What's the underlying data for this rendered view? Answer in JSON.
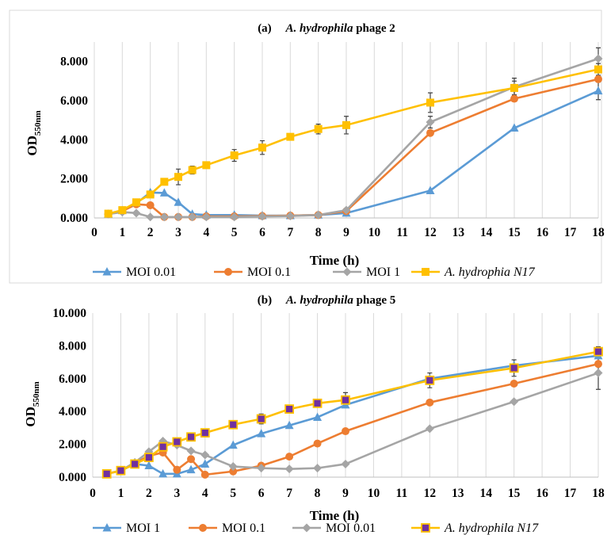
{
  "charts": [
    {
      "title_prefix": "(a)",
      "title_italic": "A. hydrophila",
      "title_suffix": "phage 2",
      "ylabel_main": "OD",
      "ylabel_sub": "550nm",
      "xlabel": "Time (h)"
    },
    {
      "title_prefix": "(b)",
      "title_italic": "A. hydrophila",
      "title_suffix": "phage 5",
      "ylabel_main": "OD",
      "ylabel_sub": "550nm",
      "xlabel": "Time (h)"
    }
  ],
  "chart_data": [
    {
      "type": "line",
      "title": "(a) A. hydrophila phage 2",
      "xlabel": "Time (h)",
      "ylabel": "OD550nm",
      "x_ticks": [
        "0",
        "1",
        "2",
        "3",
        "4",
        "5",
        "6",
        "7",
        "8",
        "9",
        "10",
        "11",
        "12",
        "13",
        "14",
        "15",
        "16",
        "17",
        "18"
      ],
      "y_ticks": [
        "0.000",
        "2.000",
        "4.000",
        "6.000",
        "8.000"
      ],
      "xlim": [
        0,
        18
      ],
      "ylim": [
        0,
        9
      ],
      "grid": "vertical",
      "legend": "bottom",
      "series": [
        {
          "name": "MOI 0.01",
          "color": "#5b9bd5",
          "marker": "triangle",
          "x": [
            0.5,
            1,
            1.5,
            2,
            2.5,
            3,
            3.5,
            4,
            5,
            6,
            7,
            8,
            9,
            12,
            15,
            18
          ],
          "y": [
            0.2,
            0.38,
            0.75,
            1.3,
            1.28,
            0.8,
            0.2,
            0.15,
            0.15,
            0.12,
            0.12,
            0.15,
            0.25,
            1.4,
            4.6,
            6.5
          ]
        },
        {
          "name": "MOI 0.1",
          "color": "#ed7d31",
          "marker": "circle",
          "x": [
            0.5,
            1,
            1.5,
            2,
            2.5,
            3,
            3.5,
            4,
            5,
            6,
            7,
            8,
            9,
            12,
            15,
            18
          ],
          "y": [
            0.2,
            0.35,
            0.7,
            0.65,
            0.05,
            0.05,
            0.05,
            0.08,
            0.08,
            0.1,
            0.12,
            0.15,
            0.35,
            4.35,
            6.1,
            7.1
          ]
        },
        {
          "name": "MOI 1",
          "color": "#a5a5a5",
          "marker": "diamond",
          "x": [
            0.5,
            1,
            1.5,
            2,
            2.5,
            3,
            3.5,
            4,
            5,
            6,
            7,
            8,
            9,
            12,
            15,
            18
          ],
          "y": [
            0.2,
            0.3,
            0.25,
            0.05,
            0.05,
            0.05,
            0.05,
            0.05,
            0.05,
            0.08,
            0.1,
            0.15,
            0.4,
            4.9,
            6.7,
            8.15
          ]
        },
        {
          "name": "A. hydrophia N17",
          "color": "#ffc000",
          "marker": "square",
          "italic": true,
          "x": [
            0.5,
            1,
            1.5,
            2,
            2.5,
            3,
            3.5,
            4,
            5,
            6,
            7,
            8,
            9,
            12,
            15,
            18
          ],
          "y": [
            0.22,
            0.4,
            0.8,
            1.2,
            1.85,
            2.1,
            2.45,
            2.7,
            3.2,
            3.6,
            4.15,
            4.55,
            4.75,
            5.9,
            6.65,
            7.6
          ],
          "err": [
            0,
            0,
            0,
            0.1,
            0.15,
            0.4,
            0.2,
            0.1,
            0.3,
            0.35,
            0.1,
            0.25,
            0.45,
            0.5,
            0.35,
            0.3
          ]
        }
      ],
      "extra_errors": [
        {
          "x": 12,
          "y": 4.9,
          "e": 0.3
        },
        {
          "x": 18,
          "y": 8.15,
          "e": 0.55
        },
        {
          "x": 18,
          "y": 6.5,
          "e": 0.45
        },
        {
          "x": 15,
          "y": 6.7,
          "e": 0.45
        }
      ]
    },
    {
      "type": "line",
      "title": "(b) A. hydrophila phage 5",
      "xlabel": "Time (h)",
      "ylabel": "OD550nm",
      "x_ticks": [
        "0",
        "1",
        "2",
        "3",
        "4",
        "5",
        "6",
        "7",
        "8",
        "9",
        "10",
        "11",
        "12",
        "13",
        "14",
        "15",
        "16",
        "17",
        "18"
      ],
      "y_ticks": [
        "0.000",
        "2.000",
        "4.000",
        "6.000",
        "8.000",
        "10.000"
      ],
      "xlim": [
        0,
        18
      ],
      "ylim": [
        0,
        10
      ],
      "grid": "vertical",
      "legend": "bottom",
      "series": [
        {
          "name": "MOI 1",
          "color": "#5b9bd5",
          "marker": "triangle",
          "x": [
            0.5,
            1,
            1.5,
            2,
            2.5,
            3,
            3.5,
            4,
            5,
            6,
            7,
            8,
            9,
            12,
            15,
            18
          ],
          "y": [
            0.2,
            0.4,
            0.8,
            0.7,
            0.2,
            0.2,
            0.45,
            0.8,
            1.95,
            2.65,
            3.15,
            3.65,
            4.4,
            6.0,
            6.8,
            7.4
          ]
        },
        {
          "name": "MOI 0.1",
          "color": "#ed7d31",
          "marker": "circle",
          "x": [
            0.5,
            1,
            1.5,
            2,
            2.5,
            3,
            3.5,
            4,
            5,
            6,
            7,
            8,
            9,
            12,
            15,
            18
          ],
          "y": [
            0.2,
            0.4,
            0.85,
            1.3,
            1.5,
            0.45,
            1.1,
            0.15,
            0.35,
            0.7,
            1.25,
            2.05,
            2.8,
            4.55,
            5.7,
            6.9
          ]
        },
        {
          "name": "MOI 0.01",
          "color": "#a5a5a5",
          "marker": "diamond",
          "x": [
            0.5,
            1,
            1.5,
            2,
            2.5,
            3,
            3.5,
            4,
            5,
            6,
            7,
            8,
            9,
            12,
            15,
            18
          ],
          "y": [
            0.2,
            0.4,
            0.9,
            1.55,
            2.2,
            1.95,
            1.6,
            1.35,
            0.65,
            0.55,
            0.5,
            0.55,
            0.8,
            2.95,
            4.6,
            6.35
          ],
          "err": [
            0,
            0,
            0,
            0,
            0,
            0,
            0,
            0,
            0,
            0,
            0,
            0,
            0,
            0,
            0,
            1.0
          ]
        },
        {
          "name": "A. hydrophila N17",
          "color": "#ffc000",
          "marker": "square-purple",
          "italic": true,
          "x": [
            0.5,
            1,
            1.5,
            2,
            2.5,
            3,
            3.5,
            4,
            5,
            6,
            7,
            8,
            9,
            12,
            15,
            18
          ],
          "y": [
            0.2,
            0.4,
            0.8,
            1.2,
            1.85,
            2.15,
            2.45,
            2.7,
            3.2,
            3.55,
            4.15,
            4.5,
            4.7,
            5.9,
            6.65,
            7.65
          ],
          "err": [
            0,
            0,
            0,
            0,
            0,
            0.2,
            0.15,
            0.1,
            0.25,
            0.3,
            0.15,
            0.2,
            0.45,
            0.45,
            0.5,
            0.3
          ]
        }
      ]
    }
  ]
}
